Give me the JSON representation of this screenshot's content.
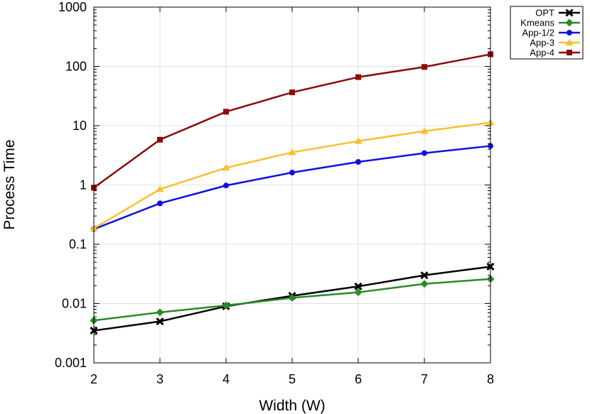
{
  "chart_data": {
    "type": "line",
    "title": "",
    "xlabel": "Width (W)",
    "ylabel": "Process Time",
    "y_scale": "log",
    "xlim": [
      2,
      8
    ],
    "ylim": [
      0.001,
      1000
    ],
    "x_ticks": [
      "2",
      "3",
      "4",
      "5",
      "6",
      "7",
      "8"
    ],
    "y_ticks": [
      "0.001",
      "0.01",
      "0.1",
      "1",
      "10",
      "100",
      "1000"
    ],
    "grid": true,
    "legend_position": "outside-top-right",
    "x": [
      2,
      3,
      4,
      5,
      6,
      7,
      8
    ],
    "series": [
      {
        "name": "OPT",
        "color": "#000000",
        "marker": "cross",
        "values": [
          0.0035,
          0.005,
          0.009,
          0.0135,
          0.0195,
          0.03,
          0.042
        ]
      },
      {
        "name": "Kmeans",
        "color": "#2a8a2a",
        "marker": "diamond",
        "values": [
          0.0052,
          0.0071,
          0.0093,
          0.0125,
          0.0155,
          0.0215,
          0.026
        ]
      },
      {
        "name": "App-1/2",
        "color": "#1010e0",
        "marker": "circle",
        "values": [
          0.18,
          0.49,
          0.98,
          1.62,
          2.45,
          3.45,
          4.55
        ]
      },
      {
        "name": "App-3",
        "color": "#f8c030",
        "marker": "triangle",
        "values": [
          0.185,
          0.85,
          1.95,
          3.55,
          5.5,
          8.1,
          11.3
        ]
      },
      {
        "name": "App-4",
        "color": "#8b0a0a",
        "marker": "square",
        "values": [
          0.9,
          5.8,
          17.2,
          36.5,
          66,
          98,
          160
        ]
      }
    ]
  }
}
